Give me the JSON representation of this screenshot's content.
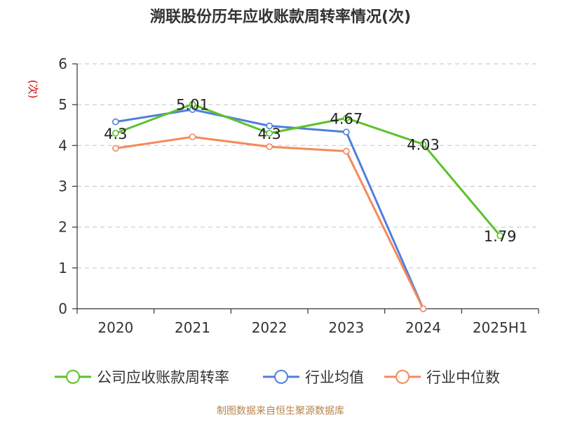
{
  "page": {
    "title": "溯联股份历年应收账款周转率情况(次)",
    "source": "制图数据来自恒生聚源数据库"
  },
  "colors": {
    "company": "#5cc22a",
    "industry_avg": "#4f7fde",
    "industry_median": "#f5895a",
    "grid": "#cccccc",
    "axis": "#333333"
  },
  "chart_data": {
    "type": "line",
    "title": "溯联股份历年应收账款周转率情况(次)",
    "ylabel": "(次)",
    "xlabel": "",
    "categories": [
      "2020",
      "2021",
      "2022",
      "2023",
      "2024",
      "2025H1"
    ],
    "ylim": [
      0,
      6
    ],
    "yticks": [
      0,
      1,
      2,
      3,
      4,
      5,
      6
    ],
    "grid": true,
    "legend_position": "bottom",
    "series": [
      {
        "name": "公司应收账款周转率",
        "color": "#5cc22a",
        "values": [
          4.3,
          5.01,
          4.3,
          4.67,
          4.03,
          1.79
        ],
        "labels": [
          "4.3",
          "5.01",
          "4.3",
          "4.67",
          "4.03",
          "1.79"
        ]
      },
      {
        "name": "行业均值",
        "color": "#4f7fde",
        "values": [
          4.58,
          4.88,
          4.48,
          4.33,
          0,
          null
        ],
        "labels": []
      },
      {
        "name": "行业中位数",
        "color": "#f5895a",
        "values": [
          3.93,
          4.21,
          3.97,
          3.86,
          0,
          null
        ],
        "labels": []
      }
    ]
  }
}
